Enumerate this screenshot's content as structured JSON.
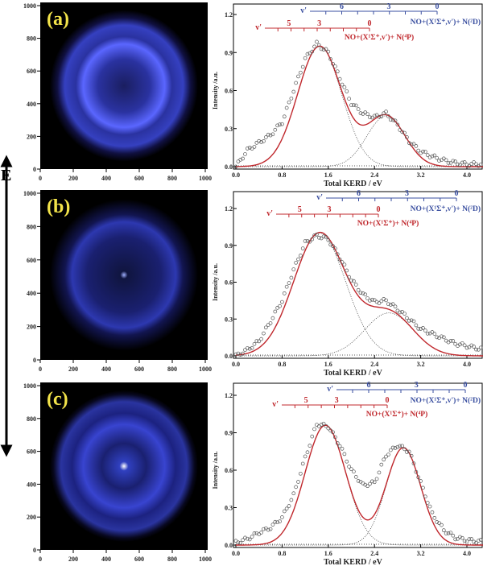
{
  "energy_arrow_label": "E",
  "colors": {
    "fit": "#c0282d",
    "blue_scale": "#3a4fa0",
    "red_scale": "#c0282d",
    "image_glow": "#4a55ff"
  },
  "images": [
    {
      "label": "(a)",
      "x_ticks": [
        "0",
        "200",
        "400",
        "600",
        "800",
        "1000"
      ],
      "y_ticks": [
        "0",
        "200",
        "400",
        "600",
        "800",
        "1000"
      ]
    },
    {
      "label": "(b)",
      "x_ticks": [
        "0",
        "200",
        "400",
        "600",
        "800",
        "1000"
      ],
      "y_ticks": [
        "0",
        "200",
        "400",
        "600",
        "800",
        "1000"
      ]
    },
    {
      "label": "(c)",
      "x_ticks": [
        "0",
        "200",
        "400",
        "600",
        "800",
        "1000"
      ],
      "y_ticks": [
        "0",
        "200",
        "400",
        "600",
        "800",
        "1000"
      ]
    }
  ],
  "chart_data": [
    {
      "type": "scatter",
      "xlabel": "Total KERD / eV",
      "ylabel": "Intensity /a.u.",
      "xlim": [
        0,
        4.3
      ],
      "ylim": [
        0,
        1.25
      ],
      "x_ticks": [
        "0.0",
        "0.8",
        "1.6",
        "2.4",
        "3.2",
        "4.0"
      ],
      "y_ticks": [
        "0.0",
        "0.3",
        "0.6",
        "0.9",
        "1.2"
      ],
      "blue_scale": {
        "v_label": "v'",
        "ticks": [
          "6",
          "3",
          "0"
        ],
        "product": "NO+(X¹Σ⁺,v')+ N(²D)"
      },
      "red_scale": {
        "v_label": "v'",
        "ticks": [
          "5",
          "3",
          "0"
        ],
        "product": "NO+(X¹Σ⁺,v')+ N(⁴P)"
      },
      "measured": {
        "x": [
          0,
          0.2,
          0.4,
          0.6,
          0.8,
          1.0,
          1.2,
          1.4,
          1.6,
          1.8,
          2.0,
          2.2,
          2.4,
          2.6,
          2.8,
          3.0,
          3.2,
          3.4,
          3.6,
          3.8,
          4.0,
          4.2
        ],
        "y": [
          0,
          0.13,
          0.19,
          0.25,
          0.35,
          0.6,
          0.85,
          0.97,
          0.9,
          0.7,
          0.5,
          0.42,
          0.39,
          0.42,
          0.33,
          0.2,
          0.12,
          0.08,
          0.05,
          0.03,
          0.02,
          0.02
        ]
      },
      "fit_components": [
        {
          "center": 1.45,
          "amplitude": 0.95,
          "sigma": 0.38
        },
        {
          "center": 2.6,
          "amplitude": 0.4,
          "sigma": 0.33
        }
      ]
    },
    {
      "type": "scatter",
      "xlabel": "Total KERD / eV",
      "ylabel": "Intensity /a.u.",
      "xlim": [
        0,
        4.3
      ],
      "ylim": [
        0,
        1.25
      ],
      "x_ticks": [
        "0.0",
        "0.8",
        "1.6",
        "2.4",
        "3.2",
        "4.0"
      ],
      "y_ticks": [
        "0.0",
        "0.3",
        "0.6",
        "0.9",
        "1.2"
      ],
      "blue_scale": {
        "v_label": "v'",
        "ticks": [
          "6",
          "3",
          "0"
        ],
        "product": "NO+(X¹Σ⁺,v')+ N(²D)"
      },
      "red_scale": {
        "v_label": "v'",
        "ticks": [
          "5",
          "3",
          "0"
        ],
        "product": "NO+(X¹Σ⁺)+ N(⁴P)"
      },
      "measured": {
        "x": [
          0,
          0.2,
          0.4,
          0.6,
          0.8,
          1.0,
          1.2,
          1.4,
          1.6,
          1.8,
          2.0,
          2.2,
          2.4,
          2.6,
          2.8,
          3.0,
          3.2,
          3.4,
          3.6,
          3.8,
          4.0,
          4.2
        ],
        "y": [
          0,
          0.05,
          0.12,
          0.28,
          0.45,
          0.7,
          0.92,
          0.98,
          0.95,
          0.8,
          0.62,
          0.5,
          0.44,
          0.45,
          0.38,
          0.3,
          0.22,
          0.18,
          0.14,
          0.1,
          0.08,
          0.06
        ]
      },
      "fit_components": [
        {
          "center": 1.45,
          "amplitude": 1.0,
          "sigma": 0.45
        },
        {
          "center": 2.65,
          "amplitude": 0.35,
          "sigma": 0.42
        }
      ]
    },
    {
      "type": "scatter",
      "xlabel": "Total KERD / eV",
      "ylabel": "Intensity /a.u.",
      "xlim": [
        0,
        4.3
      ],
      "ylim": [
        0,
        1.25
      ],
      "x_ticks": [
        "0.0",
        "0.8",
        "1.6",
        "2.4",
        "3.2",
        "4.0"
      ],
      "y_ticks": [
        "0.0",
        "0.3",
        "0.6",
        "0.9",
        "1.2"
      ],
      "blue_scale": {
        "v_label": "v'",
        "ticks": [
          "6",
          "3",
          "0"
        ],
        "product": "NO+(X¹Σ⁺,v')+ N(²D)"
      },
      "red_scale": {
        "v_label": "v'",
        "ticks": [
          "5",
          "3",
          "0"
        ],
        "product": "NO+(X¹Σ⁺)+ N(⁴P)"
      },
      "measured": {
        "x": [
          0,
          0.2,
          0.4,
          0.6,
          0.8,
          1.0,
          1.2,
          1.4,
          1.6,
          1.8,
          2.0,
          2.2,
          2.4,
          2.6,
          2.8,
          3.0,
          3.2,
          3.4,
          3.6,
          3.8,
          4.0,
          4.2
        ],
        "y": [
          0.02,
          0.05,
          0.1,
          0.14,
          0.22,
          0.4,
          0.7,
          0.97,
          0.95,
          0.8,
          0.6,
          0.48,
          0.5,
          0.72,
          0.8,
          0.75,
          0.5,
          0.25,
          0.12,
          0.06,
          0.04,
          0.03
        ]
      },
      "fit_components": [
        {
          "center": 1.55,
          "amplitude": 0.96,
          "sigma": 0.35
        },
        {
          "center": 2.9,
          "amplitude": 0.78,
          "sigma": 0.3
        }
      ]
    }
  ]
}
